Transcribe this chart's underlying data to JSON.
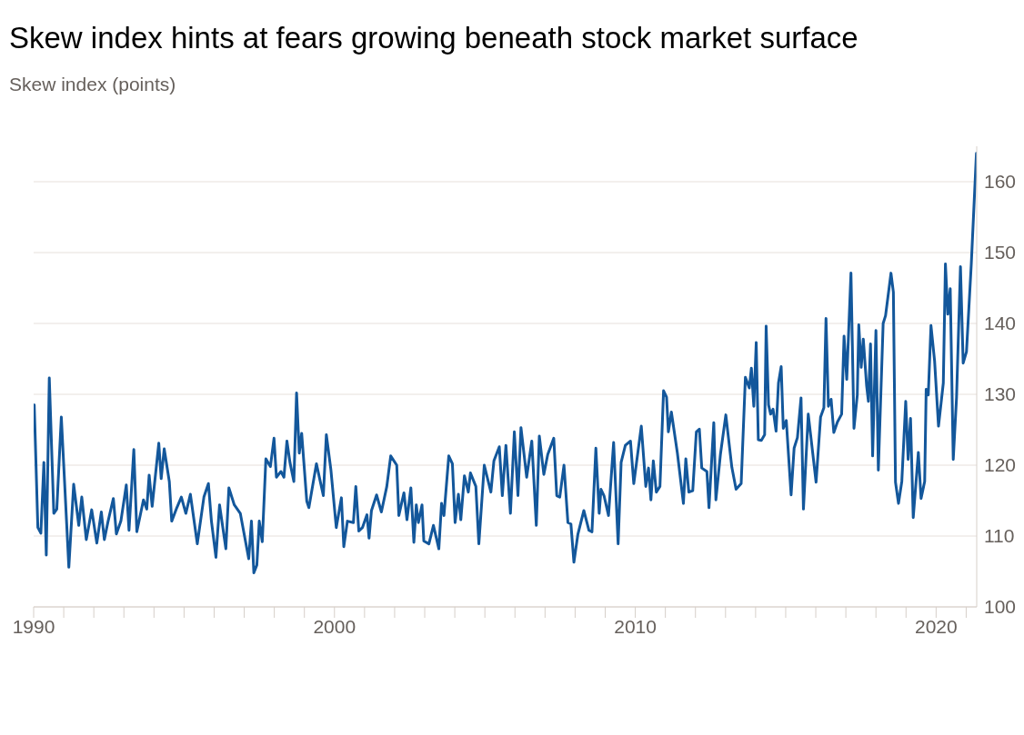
{
  "chart_data": {
    "type": "line",
    "title": "Skew index hints at fears growing beneath stock market surface",
    "subtitle": "Skew index (points)",
    "x": [
      1990.02,
      1990.14,
      1990.24,
      1990.34,
      1990.42,
      1990.52,
      1990.67,
      1990.77,
      1990.92,
      1991.17,
      1991.33,
      1991.5,
      1991.6,
      1991.75,
      1991.93,
      1992.1,
      1992.25,
      1992.35,
      1992.47,
      1992.65,
      1992.75,
      1992.9,
      1993.08,
      1993.17,
      1993.33,
      1993.43,
      1993.65,
      1993.76,
      1993.84,
      1993.94,
      1994.16,
      1994.24,
      1994.34,
      1994.51,
      1994.59,
      1994.76,
      1994.91,
      1995.06,
      1995.21,
      1995.44,
      1995.66,
      1995.81,
      1995.91,
      1996.06,
      1996.18,
      1996.39,
      1996.49,
      1996.67,
      1996.87,
      1997.15,
      1997.24,
      1997.32,
      1997.42,
      1997.5,
      1997.6,
      1997.72,
      1997.87,
      1997.99,
      1998.07,
      1998.22,
      1998.32,
      1998.42,
      1998.52,
      1998.65,
      1998.74,
      1998.83,
      1998.91,
      1999.08,
      1999.15,
      1999.4,
      1999.63,
      1999.73,
      1999.88,
      2000.06,
      2000.23,
      2000.31,
      2000.43,
      2000.63,
      2000.71,
      2000.81,
      2000.93,
      2001.08,
      2001.15,
      2001.23,
      2001.4,
      2001.56,
      2001.74,
      2001.87,
      2002.07,
      2002.14,
      2002.31,
      2002.41,
      2002.54,
      2002.64,
      2002.72,
      2002.79,
      2002.91,
      2002.97,
      2003.14,
      2003.29,
      2003.47,
      2003.56,
      2003.64,
      2003.8,
      2003.92,
      2004.01,
      2004.12,
      2004.2,
      2004.32,
      2004.45,
      2004.52,
      2004.7,
      2004.8,
      2004.98,
      2005.2,
      2005.3,
      2005.48,
      2005.58,
      2005.7,
      2005.85,
      2005.98,
      2006.1,
      2006.2,
      2006.39,
      2006.56,
      2006.71,
      2006.81,
      2006.96,
      2007.09,
      2007.29,
      2007.39,
      2007.49,
      2007.63,
      2007.76,
      2007.86,
      2007.96,
      2008.09,
      2008.29,
      2008.46,
      2008.56,
      2008.69,
      2008.8,
      2008.86,
      2008.96,
      2009.11,
      2009.28,
      2009.43,
      2009.53,
      2009.67,
      2009.84,
      2009.95,
      2010.2,
      2010.35,
      2010.44,
      2010.52,
      2010.6,
      2010.7,
      2010.82,
      2010.94,
      2011.04,
      2011.1,
      2011.2,
      2011.4,
      2011.6,
      2011.68,
      2011.78,
      2011.91,
      2012.03,
      2012.13,
      2012.21,
      2012.38,
      2012.45,
      2012.61,
      2012.68,
      2012.83,
      2013.01,
      2013.21,
      2013.35,
      2013.52,
      2013.66,
      2013.79,
      2013.86,
      2013.94,
      2014.02,
      2014.09,
      2014.19,
      2014.3,
      2014.35,
      2014.43,
      2014.5,
      2014.58,
      2014.68,
      2014.76,
      2014.85,
      2014.92,
      2015.02,
      2015.18,
      2015.28,
      2015.39,
      2015.51,
      2015.59,
      2015.75,
      2016.01,
      2016.16,
      2016.27,
      2016.34,
      2016.42,
      2016.51,
      2016.6,
      2016.72,
      2016.86,
      2016.94,
      2017.03,
      2017.17,
      2017.27,
      2017.38,
      2017.43,
      2017.51,
      2017.58,
      2017.69,
      2017.75,
      2017.82,
      2017.89,
      2018.0,
      2018.08,
      2018.24,
      2018.32,
      2018.5,
      2018.58,
      2018.65,
      2018.75,
      2018.86,
      2018.99,
      2019.07,
      2019.15,
      2019.24,
      2019.41,
      2019.5,
      2019.62,
      2019.67,
      2019.74,
      2019.83,
      2019.95,
      2020.08,
      2020.24,
      2020.31,
      2020.39,
      2020.47,
      2020.57,
      2020.68,
      2020.81,
      2020.9,
      2021.01,
      2021.17,
      2021.34
    ],
    "values": [
      128.5,
      111.2,
      110.4,
      120.4,
      107.3,
      132.3,
      113.2,
      113.8,
      126.8,
      105.6,
      117.3,
      111.5,
      115.5,
      109.5,
      113.7,
      109.0,
      113.4,
      109.5,
      112.0,
      115.3,
      110.3,
      112.1,
      117.2,
      110.8,
      122.2,
      110.6,
      115.1,
      113.8,
      118.6,
      114.2,
      123.1,
      118.1,
      122.3,
      117.7,
      112.1,
      114.0,
      115.5,
      113.2,
      115.9,
      108.9,
      115.5,
      117.4,
      112.1,
      107.0,
      114.4,
      108.2,
      116.8,
      114.4,
      113.2,
      106.8,
      112.1,
      104.8,
      105.9,
      112.1,
      109.2,
      120.9,
      119.8,
      123.8,
      118.3,
      119.1,
      118.3,
      123.4,
      120.4,
      117.7,
      130.2,
      121.7,
      124.5,
      114.9,
      114.0,
      120.2,
      115.7,
      124.3,
      119.4,
      111.2,
      115.4,
      108.5,
      112.1,
      111.9,
      117.0,
      110.7,
      111.2,
      113.0,
      109.7,
      113.6,
      115.8,
      113.4,
      117.0,
      121.3,
      120.0,
      112.9,
      116.1,
      112.3,
      116.8,
      109.1,
      114.4,
      111.9,
      114.4,
      109.3,
      108.9,
      111.5,
      108.2,
      114.6,
      112.9,
      121.3,
      120.2,
      111.9,
      115.9,
      112.3,
      118.5,
      116.2,
      118.9,
      117.0,
      108.9,
      120.0,
      116.2,
      120.6,
      122.6,
      115.7,
      122.8,
      113.2,
      124.7,
      115.7,
      125.3,
      118.3,
      123.4,
      111.5,
      124.1,
      118.7,
      121.5,
      123.8,
      115.7,
      115.5,
      120.0,
      111.9,
      111.7,
      106.3,
      110.2,
      113.6,
      110.8,
      110.6,
      122.4,
      113.2,
      116.6,
      115.7,
      112.9,
      123.2,
      108.9,
      120.4,
      122.8,
      123.4,
      117.4,
      125.5,
      117.0,
      119.6,
      115.1,
      120.6,
      116.2,
      117.0,
      130.5,
      129.6,
      124.7,
      127.5,
      121.7,
      114.6,
      120.9,
      116.2,
      116.4,
      124.7,
      125.1,
      119.6,
      119.1,
      114.0,
      126.0,
      115.1,
      121.5,
      127.1,
      119.7,
      116.6,
      117.4,
      132.4,
      130.9,
      133.7,
      128.3,
      137.3,
      123.6,
      123.5,
      124.3,
      139.6,
      128.5,
      127.2,
      127.9,
      124.8,
      131.6,
      133.9,
      125.2,
      126.3,
      115.8,
      122.4,
      123.9,
      129.5,
      113.8,
      127.2,
      117.6,
      126.8,
      128.1,
      140.7,
      128.3,
      129.3,
      124.6,
      126.1,
      127.2,
      138.2,
      132.1,
      147.1,
      125.2,
      129.9,
      139.8,
      133.8,
      137.8,
      131.2,
      129.0,
      137.1,
      121.3,
      139.0,
      119.3,
      140.0,
      141.1,
      147.1,
      144.4,
      117.6,
      114.6,
      117.7,
      129.0,
      120.8,
      126.6,
      112.6,
      121.8,
      115.3,
      117.7,
      130.7,
      129.9,
      139.7,
      134.7,
      125.5,
      131.6,
      148.4,
      141.3,
      144.9,
      120.8,
      129.6,
      148.0,
      134.4,
      136.0,
      148.4,
      164.0
    ],
    "color": "#13579b",
    "line_style": "solid",
    "xlim": [
      1990,
      2021.35
    ],
    "xticks": [
      1990,
      {
        "value": 1991,
        "label": null
      },
      {
        "value": 1992,
        "label": null
      },
      {
        "value": 1993,
        "label": null
      },
      {
        "value": 1994,
        "label": null
      },
      {
        "value": 1995,
        "label": null
      },
      {
        "value": 1996,
        "label": null
      },
      {
        "value": 1997,
        "label": null
      },
      {
        "value": 1998,
        "label": null
      },
      {
        "value": 1999,
        "label": null
      },
      2000,
      {
        "value": 2001,
        "label": null
      },
      {
        "value": 2002,
        "label": null
      },
      {
        "value": 2003,
        "label": null
      },
      {
        "value": 2004,
        "label": null
      },
      {
        "value": 2005,
        "label": null
      },
      {
        "value": 2006,
        "label": null
      },
      {
        "value": 2007,
        "label": null
      },
      {
        "value": 2008,
        "label": null
      },
      {
        "value": 2009,
        "label": null
      },
      2010,
      {
        "value": 2011,
        "label": null
      },
      {
        "value": 2012,
        "label": null
      },
      {
        "value": 2013,
        "label": null
      },
      {
        "value": 2014,
        "label": null
      },
      {
        "value": 2015,
        "label": null
      },
      {
        "value": 2016,
        "label": null
      },
      {
        "value": 2017,
        "label": null
      },
      {
        "value": 2018,
        "label": null
      },
      {
        "value": 2019,
        "label": null
      },
      2020,
      {
        "value": 2021,
        "label": null
      }
    ],
    "ylim": [
      100,
      165
    ],
    "yticks": [
      100,
      110,
      120,
      130,
      140,
      150,
      160
    ],
    "grid": "y"
  }
}
